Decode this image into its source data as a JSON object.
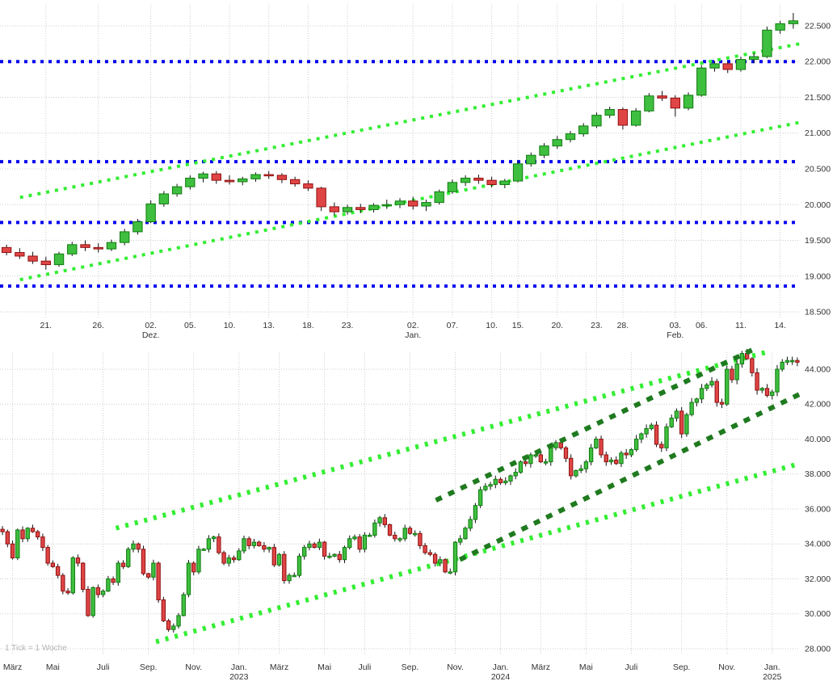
{
  "colors": {
    "background": "#ffffff",
    "grid": "#cccccc",
    "candle_up_fill": "#3fbf3f",
    "candle_up_stroke": "#0f7a0f",
    "candle_down_fill": "#e04545",
    "candle_down_stroke": "#8f1010",
    "wick": "#111111",
    "support_resistance": "#0000ee",
    "trend_light_green": "#33ee33",
    "trend_dark_green": "#1f7a1f",
    "axis_text": "#333333",
    "note_text": "#b5b5b5"
  },
  "chart_data": [
    {
      "id": "daily",
      "type": "candlestick",
      "y_axis": {
        "side": "right",
        "ticks": [
          {
            "v": 18500,
            "label": "18.500"
          },
          {
            "v": 19000,
            "label": "19.000"
          },
          {
            "v": 19500,
            "label": "19.500"
          },
          {
            "v": 20000,
            "label": "20.000"
          },
          {
            "v": 20500,
            "label": "20.500"
          },
          {
            "v": 21000,
            "label": "21.000"
          },
          {
            "v": 21500,
            "label": "21.500"
          },
          {
            "v": 22000,
            "label": "22.000"
          },
          {
            "v": 22500,
            "label": "22.500"
          }
        ]
      },
      "x_axis": {
        "ticks": [
          {
            "i": 3,
            "label": "21."
          },
          {
            "i": 7,
            "label": "26."
          },
          {
            "i": 11,
            "label": "02.",
            "sub": "Dez."
          },
          {
            "i": 14,
            "label": "05."
          },
          {
            "i": 17,
            "label": "10."
          },
          {
            "i": 20,
            "label": "13."
          },
          {
            "i": 23,
            "label": "18."
          },
          {
            "i": 26,
            "label": "23."
          },
          {
            "i": 31,
            "label": "02.",
            "sub": "Jan."
          },
          {
            "i": 34,
            "label": "07."
          },
          {
            "i": 37,
            "label": "10."
          },
          {
            "i": 39,
            "label": "15."
          },
          {
            "i": 42,
            "label": "20."
          },
          {
            "i": 45,
            "label": "23."
          },
          {
            "i": 47,
            "label": "28."
          },
          {
            "i": 51,
            "label": "03.",
            "sub": "Feb."
          },
          {
            "i": 53,
            "label": "06."
          },
          {
            "i": 56,
            "label": "11."
          },
          {
            "i": 59,
            "label": "14."
          }
        ]
      },
      "horizontal_lines": [
        22000,
        20600,
        19750,
        18860
      ],
      "trend_lines": [
        {
          "x1": 0.025,
          "p1": 20100,
          "x2": 1.0,
          "p2": 22250,
          "style": "light"
        },
        {
          "x1": 0.025,
          "p1": 18950,
          "x2": 1.0,
          "p2": 21150,
          "style": "light"
        }
      ],
      "candles": [
        [
          19400,
          19440,
          19290,
          19330
        ],
        [
          19330,
          19390,
          19240,
          19280
        ],
        [
          19280,
          19340,
          19170,
          19210
        ],
        [
          19210,
          19270,
          19090,
          19160
        ],
        [
          19160,
          19340,
          19130,
          19310
        ],
        [
          19310,
          19480,
          19280,
          19440
        ],
        [
          19440,
          19500,
          19350,
          19400
        ],
        [
          19400,
          19460,
          19330,
          19380
        ],
        [
          19380,
          19510,
          19350,
          19470
        ],
        [
          19470,
          19660,
          19430,
          19620
        ],
        [
          19620,
          19800,
          19580,
          19760
        ],
        [
          19760,
          20060,
          19740,
          20010
        ],
        [
          20010,
          20190,
          19970,
          20150
        ],
        [
          20150,
          20290,
          20110,
          20250
        ],
        [
          20250,
          20410,
          20210,
          20370
        ],
        [
          20370,
          20460,
          20310,
          20430
        ],
        [
          20430,
          20470,
          20290,
          20340
        ],
        [
          20340,
          20410,
          20280,
          20320
        ],
        [
          20320,
          20390,
          20270,
          20360
        ],
        [
          20360,
          20450,
          20320,
          20420
        ],
        [
          20420,
          20470,
          20360,
          20410
        ],
        [
          20410,
          20440,
          20300,
          20350
        ],
        [
          20350,
          20390,
          20250,
          20290
        ],
        [
          20290,
          20340,
          20190,
          20230
        ],
        [
          20230,
          20250,
          19910,
          19970
        ],
        [
          19970,
          20030,
          19850,
          19900
        ],
        [
          19900,
          20000,
          19860,
          19960
        ],
        [
          19960,
          20010,
          19880,
          19930
        ],
        [
          19930,
          20020,
          19890,
          19990
        ],
        [
          19990,
          20070,
          19940,
          20000
        ],
        [
          20000,
          20090,
          19950,
          20050
        ],
        [
          20050,
          20110,
          19930,
          19980
        ],
        [
          19980,
          20070,
          19910,
          20030
        ],
        [
          20030,
          20210,
          20000,
          20180
        ],
        [
          20180,
          20350,
          20150,
          20310
        ],
        [
          20310,
          20410,
          20260,
          20370
        ],
        [
          20370,
          20420,
          20290,
          20340
        ],
        [
          20340,
          20390,
          20240,
          20280
        ],
        [
          20280,
          20360,
          20230,
          20330
        ],
        [
          20330,
          20610,
          20310,
          20570
        ],
        [
          20570,
          20730,
          20530,
          20690
        ],
        [
          20690,
          20860,
          20650,
          20820
        ],
        [
          20820,
          20960,
          20780,
          20910
        ],
        [
          20910,
          21030,
          20870,
          20990
        ],
        [
          20990,
          21140,
          20950,
          21100
        ],
        [
          21100,
          21290,
          21070,
          21250
        ],
        [
          21250,
          21370,
          21210,
          21330
        ],
        [
          21330,
          21360,
          21050,
          21110
        ],
        [
          21110,
          21350,
          21090,
          21310
        ],
        [
          21310,
          21560,
          21290,
          21520
        ],
        [
          21520,
          21590,
          21450,
          21490
        ],
        [
          21490,
          21530,
          21230,
          21350
        ],
        [
          21350,
          21570,
          21320,
          21530
        ],
        [
          21530,
          21950,
          21510,
          21910
        ],
        [
          21910,
          22010,
          21860,
          21970
        ],
        [
          21970,
          22000,
          21840,
          21890
        ],
        [
          21890,
          22070,
          21860,
          22030
        ],
        [
          22030,
          22120,
          21980,
          22070
        ],
        [
          22070,
          22490,
          22050,
          22440
        ],
        [
          22440,
          22570,
          22390,
          22530
        ],
        [
          22530,
          22680,
          22460,
          22570
        ]
      ]
    },
    {
      "id": "weekly",
      "type": "candlestick",
      "tick_note": "1 Tick = 1 Woche",
      "y_axis": {
        "side": "right",
        "ticks": [
          {
            "v": 28000,
            "label": "28.000"
          },
          {
            "v": 30000,
            "label": "30.000"
          },
          {
            "v": 32000,
            "label": "32.000"
          },
          {
            "v": 34000,
            "label": "34.000"
          },
          {
            "v": 36000,
            "label": "36.000"
          },
          {
            "v": 38000,
            "label": "38.000"
          },
          {
            "v": 40000,
            "label": "40.000"
          },
          {
            "v": 42000,
            "label": "42.000"
          },
          {
            "v": 44000,
            "label": "44.000"
          }
        ]
      },
      "x_axis": {
        "ticks": [
          {
            "i": 2,
            "label": "März"
          },
          {
            "i": 10,
            "label": "Mai"
          },
          {
            "i": 20,
            "label": "Juli"
          },
          {
            "i": 29,
            "label": "Sep."
          },
          {
            "i": 38,
            "label": "Nov."
          },
          {
            "i": 47,
            "label": "Jan.",
            "sub": "2023"
          },
          {
            "i": 55,
            "label": "März"
          },
          {
            "i": 64,
            "label": "Mai"
          },
          {
            "i": 72,
            "label": "Juli"
          },
          {
            "i": 81,
            "label": "Sep."
          },
          {
            "i": 90,
            "label": "Nov."
          },
          {
            "i": 99,
            "label": "Jan.",
            "sub": "2024"
          },
          {
            "i": 107,
            "label": "März"
          },
          {
            "i": 116,
            "label": "Mai"
          },
          {
            "i": 125,
            "label": "Juli"
          },
          {
            "i": 135,
            "label": "Sep."
          },
          {
            "i": 144,
            "label": "Nov."
          },
          {
            "i": 153,
            "label": "Jan.",
            "sub": "2025"
          }
        ]
      },
      "trend_lines": [
        {
          "x1": 0.145,
          "p1": 34900,
          "x2": 0.96,
          "p2": 45000,
          "style": "light"
        },
        {
          "x1": 0.195,
          "p1": 28400,
          "x2": 1.0,
          "p2": 38600,
          "style": "light"
        },
        {
          "x1": 0.545,
          "p1": 36500,
          "x2": 0.945,
          "p2": 45200,
          "style": "dark",
          "front": true
        },
        {
          "x1": 0.575,
          "p1": 33100,
          "x2": 1.01,
          "p2": 42800,
          "style": "dark",
          "front": true
        }
      ],
      "closes": [
        34700,
        34000,
        33200,
        34800,
        34300,
        34900,
        34700,
        34400,
        33800,
        32900,
        32700,
        32200,
        31300,
        31200,
        33200,
        32900,
        31400,
        29900,
        31500,
        31100,
        31300,
        32000,
        31800,
        32900,
        32700,
        33700,
        34000,
        33700,
        32300,
        32100,
        32900,
        30800,
        29600,
        29100,
        29300,
        29900,
        31100,
        32900,
        32400,
        33700,
        33700,
        34300,
        34400,
        33500,
        32900,
        33200,
        33100,
        33600,
        34300,
        33900,
        34100,
        33900,
        33700,
        33800,
        32800,
        33400,
        31900,
        32200,
        32200,
        33300,
        33800,
        34000,
        33800,
        34100,
        33300,
        33300,
        33400,
        33100,
        33800,
        34300,
        34400,
        33700,
        34500,
        34500,
        35200,
        35500,
        35100,
        34500,
        34300,
        34300,
        34900,
        34600,
        34600,
        33900,
        33500,
        33400,
        32900,
        33100,
        32400,
        32400,
        34100,
        34300,
        34900,
        35400,
        36200,
        37100,
        37300,
        37400,
        37700,
        37500,
        37600,
        37900,
        38100,
        38700,
        38600,
        39100,
        39100,
        38700,
        38700,
        39500,
        39800,
        39500,
        38900,
        37900,
        38200,
        38300,
        38700,
        39500,
        40000,
        39100,
        38700,
        38800,
        38600,
        39200,
        39100,
        39400,
        40000,
        40300,
        40600,
        40800,
        39700,
        39500,
        40700,
        41200,
        41600,
        40300,
        41400,
        42100,
        42300,
        42900,
        43100,
        43300,
        42100,
        42000,
        44000,
        43400,
        44300,
        44900,
        44600,
        43800,
        42800,
        42900,
        42500,
        42700,
        44000,
        44400,
        44500,
        44500,
        44400
      ]
    }
  ]
}
